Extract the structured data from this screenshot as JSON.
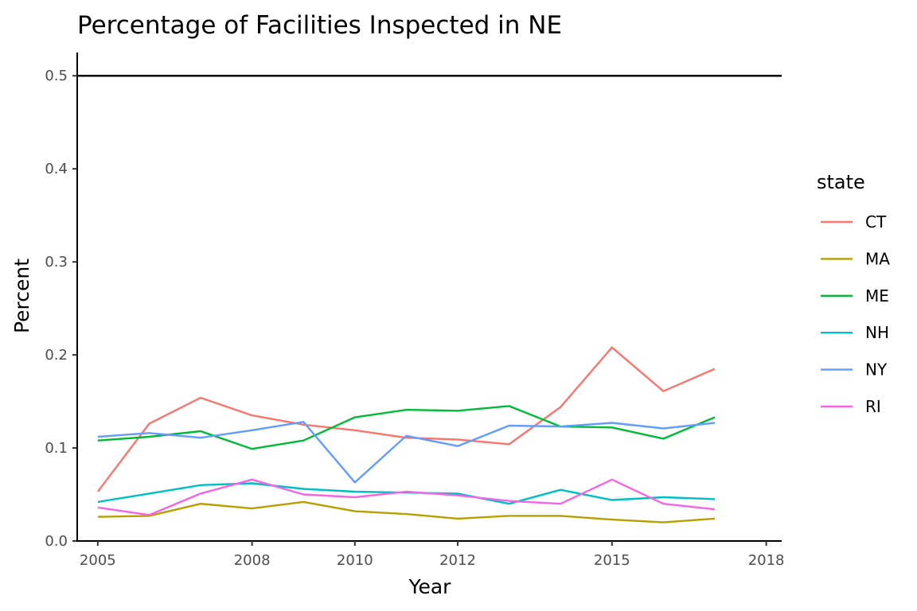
{
  "chart_data": {
    "type": "line",
    "title": "Percentage of Facilities Inspected in NE",
    "xlabel": "Year",
    "ylabel": "Percent",
    "xlim": [
      2004.6,
      2018.3
    ],
    "ylim": [
      0,
      0.525
    ],
    "x_ticks": [
      2005,
      2008,
      2010,
      2012,
      2015,
      2018
    ],
    "y_ticks": [
      0.0,
      0.1,
      0.2,
      0.3,
      0.4,
      0.5
    ],
    "y_tick_labels": [
      "0.0",
      "0.1",
      "0.2",
      "0.3",
      "0.4",
      "0.5"
    ],
    "reference_line": {
      "y": 0.5,
      "color": "#000000"
    },
    "grid": false,
    "legend": {
      "title": "state",
      "position": "right"
    },
    "x": [
      2005.0,
      2006.0,
      2007.0,
      2008.0,
      2009.0,
      2010.0,
      2011.0,
      2012.0,
      2013.0,
      2014.0,
      2015.0,
      2016.0,
      2017.0
    ],
    "series": [
      {
        "name": "CT",
        "color": "#F8766D",
        "values": [
          0.053,
          0.126,
          0.154,
          0.135,
          0.125,
          0.119,
          0.111,
          0.109,
          0.104,
          0.144,
          0.208,
          0.161,
          0.185
        ]
      },
      {
        "name": "MA",
        "color": "#B79F00",
        "values": [
          0.026,
          0.027,
          0.04,
          0.035,
          0.042,
          0.032,
          0.029,
          0.024,
          0.027,
          0.027,
          0.023,
          0.02,
          0.024
        ]
      },
      {
        "name": "ME",
        "color": "#00BA38",
        "values": [
          0.108,
          0.112,
          0.118,
          0.099,
          0.108,
          0.133,
          0.141,
          0.14,
          0.145,
          0.123,
          0.122,
          0.11,
          0.133
        ]
      },
      {
        "name": "NH",
        "color": "#00BFC4",
        "values": [
          0.042,
          0.051,
          0.06,
          0.062,
          0.056,
          0.053,
          0.052,
          0.051,
          0.04,
          0.055,
          0.044,
          0.047,
          0.045
        ]
      },
      {
        "name": "NY",
        "color": "#619CFF",
        "values": [
          0.112,
          0.116,
          0.111,
          0.119,
          0.128,
          0.063,
          0.113,
          0.102,
          0.124,
          0.123,
          0.127,
          0.121,
          0.127
        ]
      },
      {
        "name": "RI",
        "color": "#F564E3",
        "values": [
          0.036,
          0.028,
          0.051,
          0.066,
          0.05,
          0.047,
          0.053,
          0.049,
          0.043,
          0.04,
          0.066,
          0.04,
          0.034
        ]
      }
    ]
  }
}
